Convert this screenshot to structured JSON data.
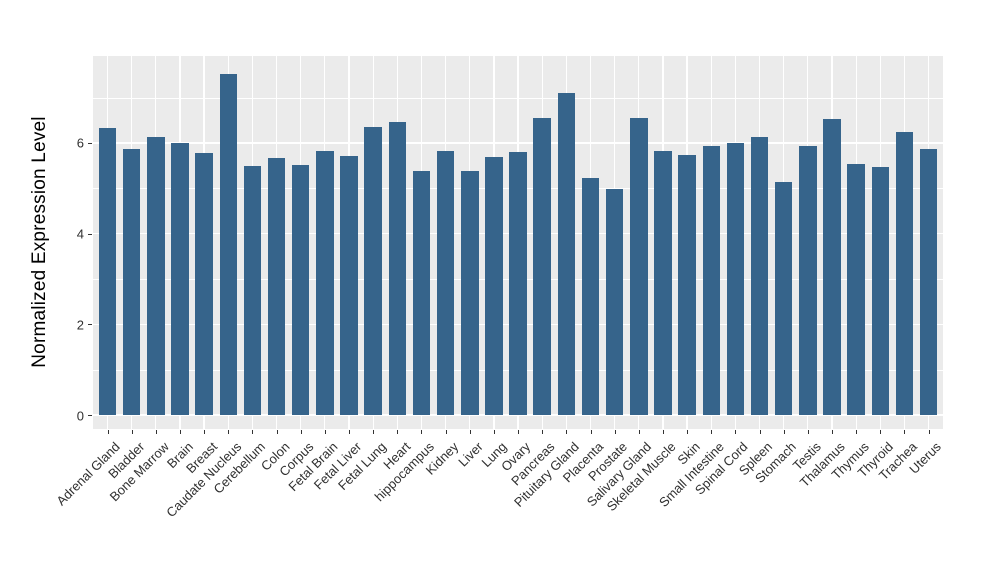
{
  "chart_data": {
    "type": "bar",
    "title": "",
    "xlabel": "",
    "ylabel": "Normalized Expression Level",
    "categories": [
      "Adrenal Gland",
      "Bladder",
      "Bone Marrow",
      "Brain",
      "Breast",
      "Caudate Nucleus",
      "Cerebellum",
      "Colon",
      "Corpus",
      "Fetal Brain",
      "Fetal Liver",
      "Fetal Lung",
      "Heart",
      "hippocampus",
      "Kidney",
      "Liver",
      "Lung",
      "Ovary",
      "Pancreas",
      "Pituitary Gland",
      "Placenta",
      "Prostate",
      "Salivary Gland",
      "Skeletal Muscle",
      "Skin",
      "Small Intestine",
      "Spinal Cord",
      "Spleen",
      "Stomach",
      "Testis",
      "Thalamus",
      "Thymus",
      "Thyroid",
      "Trachea",
      "Uterus"
    ],
    "values": [
      6.32,
      5.87,
      6.14,
      6.0,
      5.78,
      7.52,
      5.5,
      5.67,
      5.52,
      5.83,
      5.72,
      6.34,
      6.47,
      5.38,
      5.83,
      5.37,
      5.7,
      5.79,
      6.56,
      7.1,
      5.22,
      4.98,
      6.55,
      5.82,
      5.74,
      5.93,
      5.99,
      6.12,
      5.14,
      5.94,
      6.52,
      5.54,
      5.46,
      6.24,
      5.86
    ],
    "ylim": [
      0,
      7.9
    ],
    "ytick_values": [
      0,
      2,
      4,
      6
    ],
    "ytick_labels": [
      "0",
      "2",
      "4",
      "6"
    ],
    "minor_gridline_values": [
      1,
      3,
      5,
      7
    ],
    "legend": "none",
    "grid": "white gridlines on gray panel",
    "colors": {
      "bar_fill": "#36648B",
      "panel_background": "#EBEBEB",
      "gridline": "#FFFFFF",
      "tick_text": "#303030",
      "axis_title_text": "#000000",
      "figure_background": "#FFFFFF"
    }
  }
}
